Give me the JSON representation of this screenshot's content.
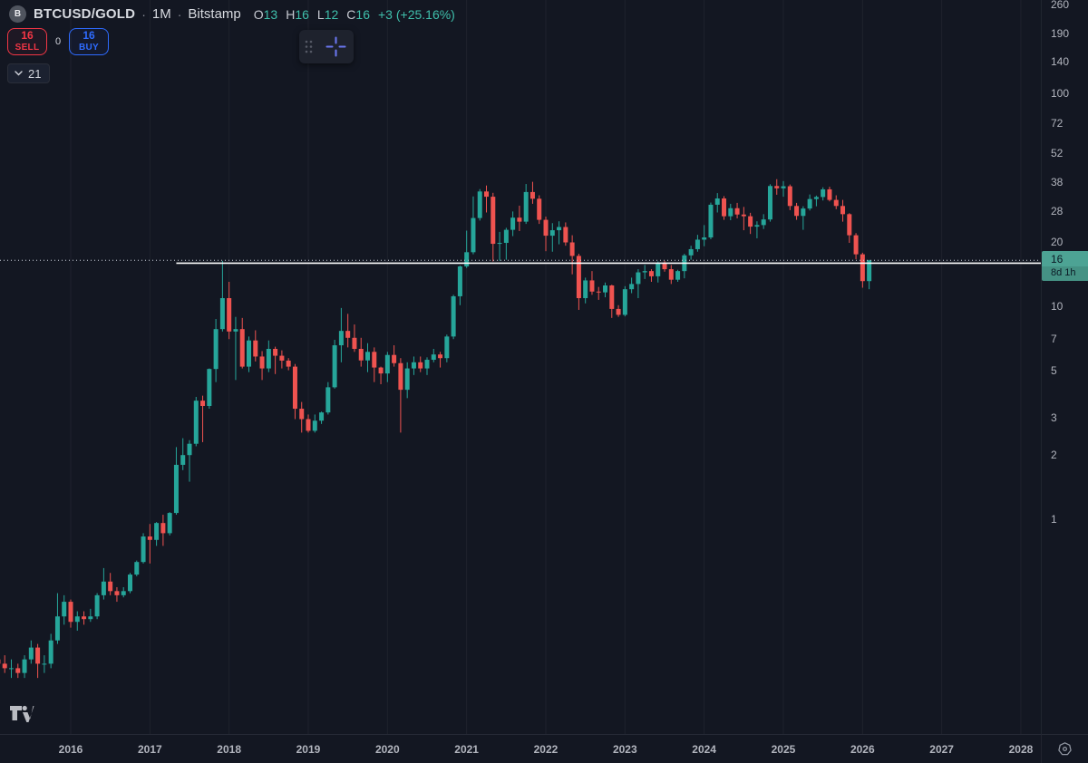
{
  "header": {
    "exchange_logo_letter": "B",
    "symbol": "BTCUSD/GOLD",
    "separator": "·",
    "interval": "1M",
    "exchange": "Bitstamp",
    "ohlc": {
      "o_label": "O",
      "o": "13",
      "h_label": "H",
      "h": "16",
      "l_label": "L",
      "l": "12",
      "c_label": "C",
      "c": "16",
      "change": "+3 (+25.16%)"
    }
  },
  "trade_panel": {
    "sell_value": "16",
    "sell_label": "SELL",
    "spread": "0",
    "buy_value": "16",
    "buy_label": "BUY"
  },
  "indicators_chip": {
    "count": "21"
  },
  "floating_toolbar": {
    "icons": [
      "drag-handle-icon",
      "crosshair-icon"
    ]
  },
  "price_axis": {
    "badge": {
      "price_label": "16",
      "countdown": "8d 1h"
    }
  },
  "bottom_toolbar": {
    "icons": [
      "tradingview-logo",
      "gear-icon"
    ]
  },
  "colors": {
    "background": "#131722",
    "up": "#26a69a",
    "down": "#ef5350",
    "up_text": "#3fbfab",
    "sell_red": "#f23645",
    "buy_blue": "#2e6bff",
    "badge_teal": "#4da394",
    "crosshair_icon": "#6a76ee",
    "axis_text": "#b2b5be",
    "grid": "rgba(255,255,255,0.05)",
    "price_line": "#ccd2dc",
    "ray_line": "#ffffff"
  },
  "chart_data": {
    "type": "candlestick",
    "title": "BTCUSD/GOLD monthly candlestick chart, Bitstamp",
    "symbol": "BTCUSD/GOLD",
    "interval": "1M",
    "scale": "logarithmic",
    "start_month": "2015-02",
    "current_price": 16.4,
    "current_price_display": "16",
    "current_bar_countdown": "8d 1h",
    "horizontal_ray": {
      "price": 15.9,
      "start_month": "2017-05"
    },
    "y_axis_ticks": [
      260,
      190,
      140,
      100,
      72,
      52,
      38,
      28,
      20,
      10,
      7,
      5,
      3,
      2,
      1
    ],
    "x_axis_years": [
      2016,
      2017,
      2018,
      2019,
      2020,
      2021,
      2022,
      2023,
      2024,
      2025,
      2026,
      2027,
      2028
    ],
    "candles_format": [
      "open",
      "high",
      "low",
      "close"
    ],
    "candles": [
      [
        0.22,
        0.26,
        0.19,
        0.21
      ],
      [
        0.21,
        0.23,
        0.19,
        0.2
      ],
      [
        0.2,
        0.22,
        0.18,
        0.2
      ],
      [
        0.2,
        0.21,
        0.18,
        0.19
      ],
      [
        0.19,
        0.23,
        0.18,
        0.22
      ],
      [
        0.22,
        0.27,
        0.21,
        0.25
      ],
      [
        0.25,
        0.26,
        0.18,
        0.21
      ],
      [
        0.21,
        0.23,
        0.19,
        0.21
      ],
      [
        0.21,
        0.29,
        0.2,
        0.27
      ],
      [
        0.27,
        0.45,
        0.26,
        0.35
      ],
      [
        0.35,
        0.44,
        0.32,
        0.41
      ],
      [
        0.41,
        0.42,
        0.31,
        0.33
      ],
      [
        0.33,
        0.37,
        0.3,
        0.35
      ],
      [
        0.35,
        0.37,
        0.32,
        0.34
      ],
      [
        0.34,
        0.38,
        0.33,
        0.35
      ],
      [
        0.35,
        0.45,
        0.34,
        0.44
      ],
      [
        0.44,
        0.59,
        0.42,
        0.51
      ],
      [
        0.51,
        0.56,
        0.44,
        0.46
      ],
      [
        0.46,
        0.48,
        0.41,
        0.44
      ],
      [
        0.44,
        0.48,
        0.43,
        0.46
      ],
      [
        0.46,
        0.56,
        0.45,
        0.55
      ],
      [
        0.55,
        0.64,
        0.54,
        0.63
      ],
      [
        0.63,
        0.86,
        0.62,
        0.83
      ],
      [
        0.83,
        0.95,
        0.62,
        0.8
      ],
      [
        0.8,
        0.97,
        0.75,
        0.96
      ],
      [
        0.96,
        1.05,
        0.75,
        0.86
      ],
      [
        0.86,
        1.08,
        0.84,
        1.07
      ],
      [
        1.07,
        2.18,
        1.05,
        1.8
      ],
      [
        1.8,
        2.4,
        1.7,
        2.0
      ],
      [
        2.0,
        2.35,
        1.5,
        2.26
      ],
      [
        2.26,
        3.75,
        2.2,
        3.6
      ],
      [
        3.6,
        3.8,
        2.3,
        3.4
      ],
      [
        3.4,
        5.1,
        3.3,
        5.07
      ],
      [
        5.07,
        8.7,
        4.4,
        7.8
      ],
      [
        7.8,
        16.3,
        7.6,
        10.9
      ],
      [
        10.9,
        13.0,
        7.0,
        7.6
      ],
      [
        7.6,
        8.9,
        4.5,
        7.8
      ],
      [
        7.8,
        8.8,
        5.1,
        5.2
      ],
      [
        5.2,
        7.2,
        4.9,
        6.9
      ],
      [
        6.9,
        7.7,
        5.5,
        5.8
      ],
      [
        5.8,
        6.15,
        4.5,
        5.1
      ],
      [
        5.1,
        6.9,
        4.9,
        6.3
      ],
      [
        6.3,
        6.45,
        4.8,
        5.85
      ],
      [
        5.85,
        6.2,
        5.1,
        5.55
      ],
      [
        5.55,
        5.7,
        5.0,
        5.2
      ],
      [
        5.2,
        5.35,
        2.95,
        3.3
      ],
      [
        3.3,
        3.55,
        2.55,
        2.95
      ],
      [
        2.95,
        3.1,
        2.55,
        2.6
      ],
      [
        2.6,
        3.1,
        2.55,
        2.9
      ],
      [
        2.9,
        3.2,
        2.8,
        3.17
      ],
      [
        3.17,
        4.4,
        3.1,
        4.16
      ],
      [
        4.16,
        6.95,
        4.1,
        6.55
      ],
      [
        6.55,
        9.8,
        5.45,
        7.65
      ],
      [
        7.65,
        9.2,
        6.4,
        7.1
      ],
      [
        7.1,
        8.2,
        6.1,
        6.3
      ],
      [
        6.3,
        7.1,
        5.2,
        5.56
      ],
      [
        5.56,
        6.7,
        4.9,
        6.1
      ],
      [
        6.1,
        6.4,
        4.4,
        5.15
      ],
      [
        5.15,
        5.2,
        4.3,
        4.83
      ],
      [
        4.83,
        6.1,
        4.4,
        5.9
      ],
      [
        5.9,
        6.55,
        5.2,
        5.4
      ],
      [
        5.4,
        5.7,
        2.55,
        4.05
      ],
      [
        4.05,
        5.45,
        3.7,
        5.1
      ],
      [
        5.1,
        5.8,
        4.75,
        5.45
      ],
      [
        5.45,
        5.8,
        4.9,
        5.1
      ],
      [
        5.1,
        5.75,
        4.75,
        5.6
      ],
      [
        5.6,
        6.3,
        5.45,
        5.93
      ],
      [
        5.93,
        6.1,
        5.15,
        5.7
      ],
      [
        5.7,
        7.35,
        5.45,
        7.2
      ],
      [
        7.2,
        11.3,
        7.0,
        11.12
      ],
      [
        11.12,
        15.5,
        10.1,
        15.35
      ],
      [
        15.35,
        22.6,
        15.1,
        17.9
      ],
      [
        17.9,
        32.7,
        17.5,
        25.9
      ],
      [
        25.9,
        35.4,
        25.2,
        34.5
      ],
      [
        34.5,
        36.8,
        27.5,
        32.6
      ],
      [
        32.6,
        34.0,
        16.2,
        19.6
      ],
      [
        19.6,
        22.3,
        16.3,
        19.8
      ],
      [
        19.8,
        23.3,
        16.5,
        22.8
      ],
      [
        22.8,
        27.8,
        21.3,
        26.0
      ],
      [
        26.0,
        29.6,
        22.5,
        24.9
      ],
      [
        24.9,
        37.4,
        24.3,
        34.3
      ],
      [
        34.3,
        38.3,
        30.2,
        31.9
      ],
      [
        31.9,
        33.1,
        24.3,
        25.4
      ],
      [
        25.4,
        26.3,
        18.1,
        21.4
      ],
      [
        21.4,
        24.5,
        18.0,
        22.7
      ],
      [
        22.7,
        25.0,
        19.5,
        23.5
      ],
      [
        23.5,
        24.7,
        19.2,
        19.9
      ],
      [
        19.9,
        21.5,
        14.1,
        17.2
      ],
      [
        17.2,
        17.6,
        9.6,
        10.9
      ],
      [
        10.9,
        13.6,
        10.3,
        13.2
      ],
      [
        13.2,
        14.6,
        11.3,
        11.7
      ],
      [
        11.7,
        12.3,
        10.7,
        11.6
      ],
      [
        11.6,
        12.9,
        11.0,
        12.5
      ],
      [
        12.5,
        12.6,
        8.8,
        9.7
      ],
      [
        9.7,
        10.1,
        8.9,
        9.1
      ],
      [
        9.1,
        12.4,
        8.95,
        12.0
      ],
      [
        12.0,
        13.6,
        11.5,
        12.7
      ],
      [
        12.7,
        14.9,
        10.9,
        14.4
      ],
      [
        14.4,
        15.6,
        13.4,
        14.6
      ],
      [
        14.6,
        14.9,
        13.0,
        13.8
      ],
      [
        13.8,
        16.2,
        12.9,
        15.9
      ],
      [
        15.9,
        16.3,
        14.5,
        14.9
      ],
      [
        14.9,
        15.6,
        12.7,
        13.3
      ],
      [
        13.3,
        14.8,
        13.0,
        14.6
      ],
      [
        14.6,
        17.6,
        13.5,
        17.3
      ],
      [
        17.3,
        19.2,
        16.5,
        18.5
      ],
      [
        18.5,
        21.6,
        18.0,
        20.5
      ],
      [
        20.5,
        24.0,
        19.1,
        21.0
      ],
      [
        21.0,
        30.6,
        20.6,
        29.9
      ],
      [
        29.9,
        33.9,
        27.5,
        32.0
      ],
      [
        32.0,
        32.8,
        25.4,
        26.4
      ],
      [
        26.4,
        30.2,
        25.3,
        28.8
      ],
      [
        28.8,
        30.5,
        25.8,
        26.9
      ],
      [
        26.9,
        29.2,
        22.7,
        26.4
      ],
      [
        26.4,
        27.4,
        21.8,
        23.6
      ],
      [
        23.6,
        25.0,
        20.8,
        24.0
      ],
      [
        24.0,
        27.0,
        23.0,
        25.5
      ],
      [
        25.5,
        37.3,
        24.9,
        36.6
      ],
      [
        36.6,
        39.4,
        33.3,
        35.7
      ],
      [
        35.7,
        38.6,
        32.6,
        36.5
      ],
      [
        36.5,
        37.2,
        28.2,
        29.5
      ],
      [
        29.5,
        30.5,
        25.4,
        26.5
      ],
      [
        26.5,
        29.4,
        22.8,
        28.7
      ],
      [
        28.7,
        33.4,
        28.1,
        31.8
      ],
      [
        31.8,
        33.0,
        29.4,
        32.5
      ],
      [
        32.5,
        36.1,
        31.3,
        35.3
      ],
      [
        35.3,
        36.3,
        31.0,
        31.5
      ],
      [
        31.5,
        33.1,
        28.5,
        29.5
      ],
      [
        29.5,
        31.5,
        24.9,
        27.0
      ],
      [
        27.0,
        27.3,
        19.8,
        21.5
      ],
      [
        21.5,
        22.0,
        16.6,
        17.5
      ],
      [
        17.5,
        17.8,
        12.2,
        13.1
      ],
      [
        13.1,
        16.5,
        12.0,
        16.4
      ]
    ]
  }
}
